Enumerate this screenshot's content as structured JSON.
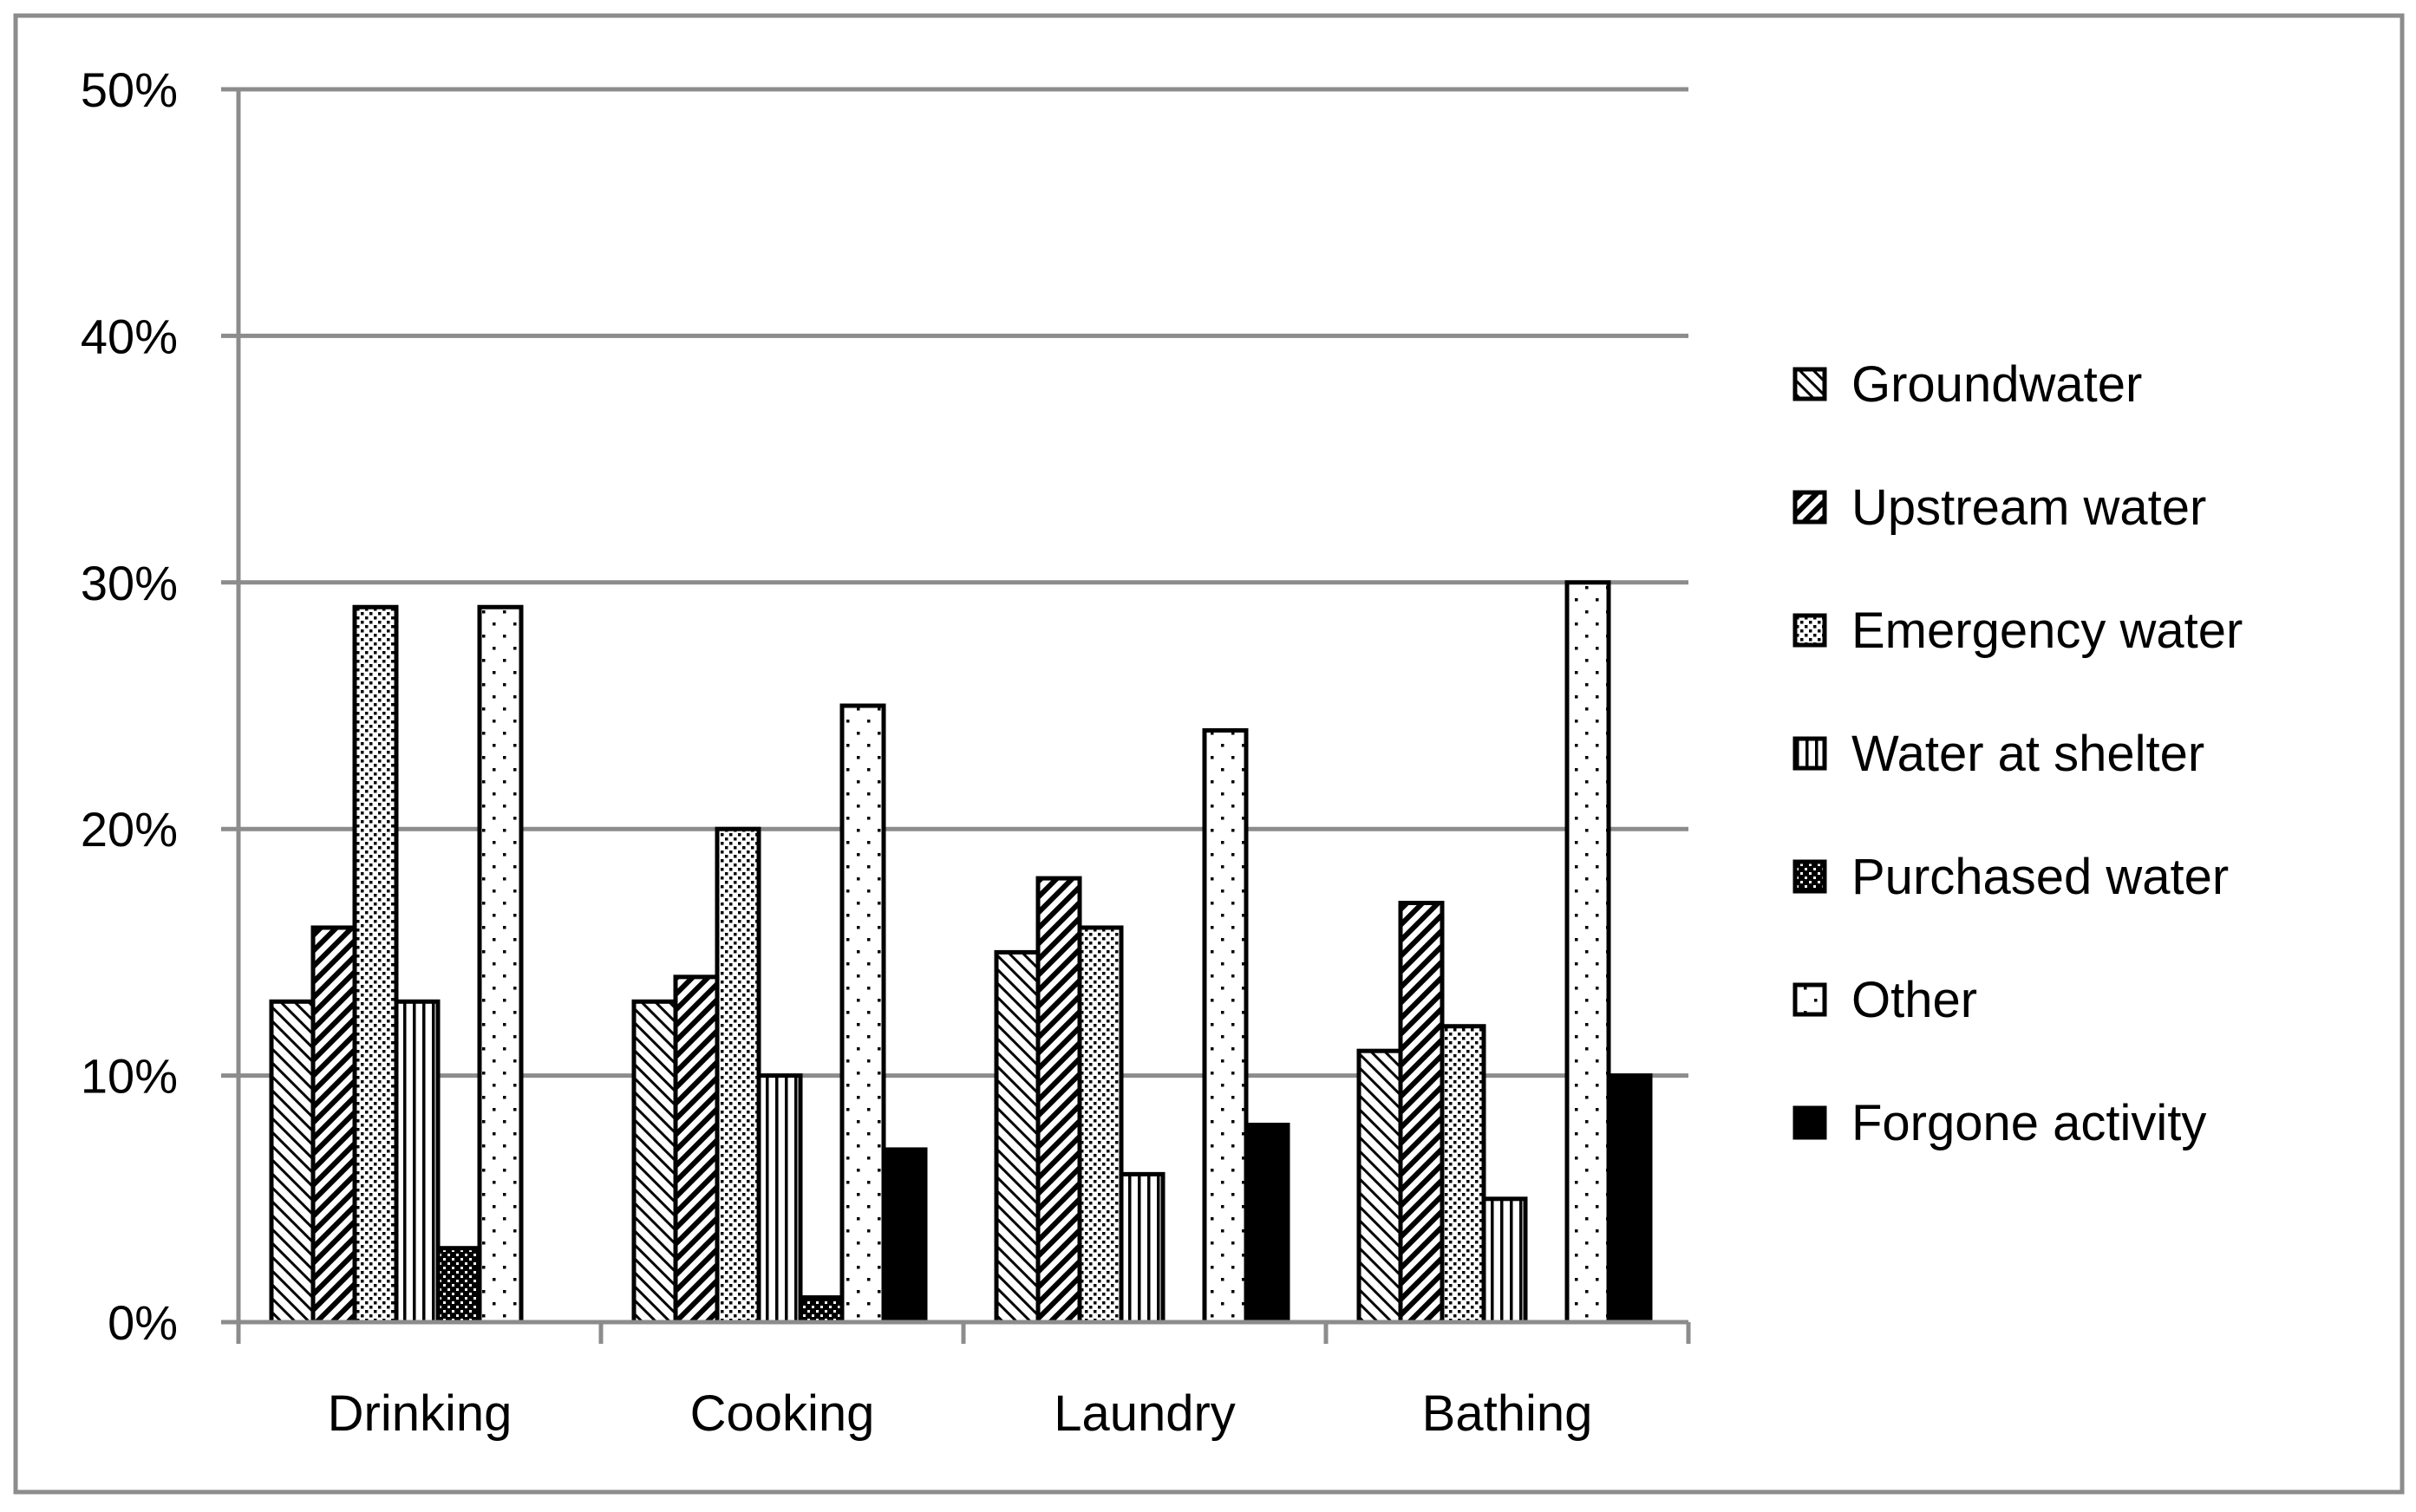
{
  "chart_data": {
    "type": "bar",
    "title": "",
    "xlabel": "",
    "ylabel": "",
    "categories": [
      "Drinking",
      "Cooking",
      "Laundry",
      "Bathing"
    ],
    "ylim": [
      0,
      50
    ],
    "yticks": [
      "0%",
      "10%",
      "20%",
      "30%",
      "40%",
      "50%"
    ],
    "ytick_values": [
      0,
      10,
      20,
      30,
      40,
      50
    ],
    "grid": true,
    "legend_position": "right",
    "series": [
      {
        "name": "Groundwater",
        "pattern": "diag-thin-back",
        "values": [
          13,
          13,
          15,
          11
        ]
      },
      {
        "name": "Upstream water",
        "pattern": "diag-thick-fwd",
        "values": [
          16,
          14,
          18,
          17
        ]
      },
      {
        "name": "Emergency water",
        "pattern": "dots-dense",
        "values": [
          29,
          20,
          16,
          12
        ]
      },
      {
        "name": "Water at shelter",
        "pattern": "vertical-lines",
        "values": [
          13,
          10,
          6,
          5
        ]
      },
      {
        "name": "Purchased water",
        "pattern": "checker-dark",
        "values": [
          3,
          1,
          0,
          0
        ]
      },
      {
        "name": "Other",
        "pattern": "dots-sparse",
        "values": [
          29,
          25,
          24,
          30
        ]
      },
      {
        "name": "Forgone activity",
        "pattern": "solid-black",
        "values": [
          0,
          7,
          8,
          10
        ]
      }
    ],
    "colors": {
      "bar_outline": "#000000",
      "grid": "#8c8c8c",
      "frame": "#8c8c8c"
    }
  }
}
